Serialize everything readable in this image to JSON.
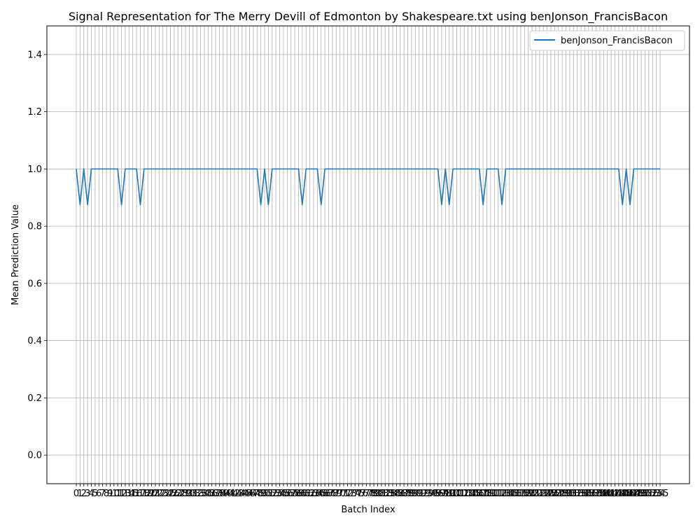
{
  "chart_data": {
    "type": "line",
    "title": "Signal Representation for The Merry Devill of Edmonton by Shakespeare.txt using benJonson_FrancisBacon",
    "xlabel": "Batch Index",
    "ylabel": "Mean Prediction Value",
    "xlim": [
      -7.8,
      162.8
    ],
    "ylim": [
      -0.1,
      1.5
    ],
    "yticks": [
      0.0,
      0.2,
      0.4,
      0.6,
      0.8,
      1.0,
      1.2,
      1.4
    ],
    "ytick_labels": [
      "0.0",
      "0.2",
      "0.4",
      "0.6",
      "0.8",
      "1.0",
      "1.2",
      "1.4"
    ],
    "x_count": 156,
    "grid": true,
    "legend": {
      "placement": "top-right",
      "entries": [
        "benJonson_FrancisBacon"
      ]
    },
    "series": [
      {
        "name": "benJonson_FrancisBacon",
        "color": "#1f77b4",
        "dips": {
          "value": 0.875,
          "indices": [
            1,
            3,
            12,
            17,
            49,
            51,
            60,
            65,
            97,
            99,
            108,
            113,
            145,
            147
          ]
        },
        "base_value": 1.0
      }
    ]
  }
}
